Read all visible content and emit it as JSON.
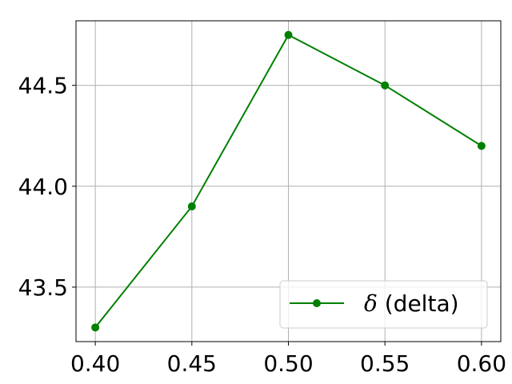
{
  "chart_data": {
    "type": "line",
    "x": [
      0.4,
      0.45,
      0.5,
      0.55,
      0.6
    ],
    "series": [
      {
        "name": "δ (delta)",
        "symbol": "δ",
        "label_rest": " (delta)",
        "values": [
          43.3,
          43.9,
          44.75,
          44.5,
          44.2
        ],
        "color": "#008000",
        "marker": "circle"
      }
    ],
    "x_ticks": [
      "0.40",
      "0.45",
      "0.50",
      "0.55",
      "0.60"
    ],
    "y_ticks": [
      "43.5",
      "44.0",
      "44.5"
    ],
    "xlim": [
      0.39,
      0.61
    ],
    "ylim": [
      43.23,
      44.82
    ],
    "grid": true,
    "legend_position": "lower-right",
    "title": "",
    "xlabel": "",
    "ylabel": ""
  }
}
